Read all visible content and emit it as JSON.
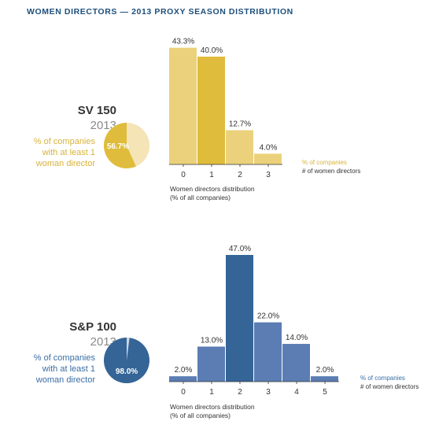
{
  "page_title": "WOMEN DIRECTORS — 2013 PROXY SEASON DISTRIBUTION",
  "colors": {
    "sv_light": "#ecd17c",
    "sv_dark": "#dfbc3c",
    "sv_pie_light": "#f4e4b6",
    "sv_text": "#d8b33c",
    "sp_light": "#5b7db3",
    "sp_dark": "#356597",
    "sp_pie_light": "#cbd6e6",
    "sp_text": "#3a6ea5"
  },
  "panels": [
    {
      "name": "SV 150",
      "year": "2013",
      "side_lines": [
        "% of companies",
        "with at least 1",
        "woman director"
      ],
      "pie_value": 56.7,
      "pie_label": "56.7%",
      "legend_pct": "% of companies",
      "legend_axis": "# of women directors",
      "caption_lines": [
        "Women directors distribution",
        "(% of all companies)"
      ]
    },
    {
      "name": "S&P 100",
      "year": "2013",
      "side_lines": [
        "% of companies",
        "with at least 1",
        "woman director"
      ],
      "pie_value": 98.0,
      "pie_label": "98.0%",
      "legend_pct": "% of companies",
      "legend_axis": "# of women directors",
      "caption_lines": [
        "Women directors distribution",
        "(% of all companies)"
      ]
    }
  ],
  "chart_data": [
    {
      "type": "bar",
      "title": "",
      "categories": [
        "0",
        "1",
        "2",
        "3"
      ],
      "values": [
        43.3,
        40.0,
        12.7,
        4.0
      ],
      "value_labels": [
        "43.3%",
        "40.0%",
        "12.7%",
        "4.0%"
      ],
      "highlight_index": 1,
      "xlabel": "# of women directors",
      "ylabel": "% of companies",
      "ylim": [
        0,
        47
      ],
      "grid": false
    },
    {
      "type": "bar",
      "title": "",
      "categories": [
        "0",
        "1",
        "2",
        "3",
        "4",
        "5"
      ],
      "values": [
        2.0,
        13.0,
        47.0,
        22.0,
        14.0,
        2.0
      ],
      "value_labels": [
        "2.0%",
        "13.0%",
        "47.0%",
        "22.0%",
        "14.0%",
        "2.0%"
      ],
      "highlight_index": 2,
      "xlabel": "# of women directors",
      "ylabel": "% of companies",
      "ylim": [
        0,
        47
      ],
      "grid": false
    }
  ]
}
